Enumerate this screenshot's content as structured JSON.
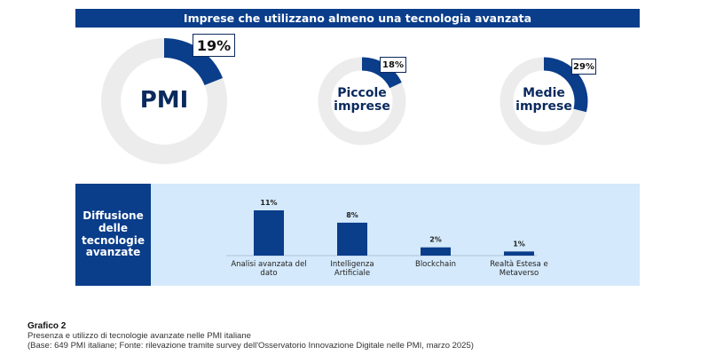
{
  "banner": {
    "title": "Imprese che utilizzano almeno una tecnologia avanzata"
  },
  "colors": {
    "navy": "#0a3d8a",
    "light_grey": "#ececec",
    "light_blue": "#d4e9fb"
  },
  "chart_data": [
    {
      "type": "pie",
      "title": "Imprese che utilizzano almeno una tecnologia avanzata",
      "series": [
        {
          "name": "PMI",
          "value": 19,
          "value_label": "19%"
        },
        {
          "name": "Piccole imprese",
          "value": 18,
          "value_label": "18%"
        },
        {
          "name": "Medie imprese",
          "value": 29,
          "value_label": "29%"
        }
      ],
      "unit": "%"
    },
    {
      "type": "bar",
      "title": "Diffusione delle tecnologie avanzate",
      "categories": [
        "Analisi avanzata del dato",
        "Intelligenza Artificiale",
        "Blockchain",
        "Realtà Estesa e Metaverso"
      ],
      "values": [
        11,
        8,
        2,
        1
      ],
      "value_labels": [
        "11%",
        "8%",
        "2%",
        "1%"
      ],
      "ylim": [
        0,
        12
      ],
      "xlabel": "",
      "ylabel": ""
    }
  ],
  "donut_labels": [
    "PMI",
    "Piccole\nimprese",
    "Medie\nimprese"
  ],
  "diffusion": {
    "title": "Diffusione\ndelle\ntecnologie\navanzate"
  },
  "caption": {
    "title": "Grafico 2",
    "line1": "Presenza e utilizzo di tecnologie avanzate nelle PMI italiane",
    "line2": "(Base: 649 PMI italiane; Fonte: rilevazione tramite survey dell'Osservatorio Innovazione Digitale nelle PMI, marzo 2025)"
  }
}
